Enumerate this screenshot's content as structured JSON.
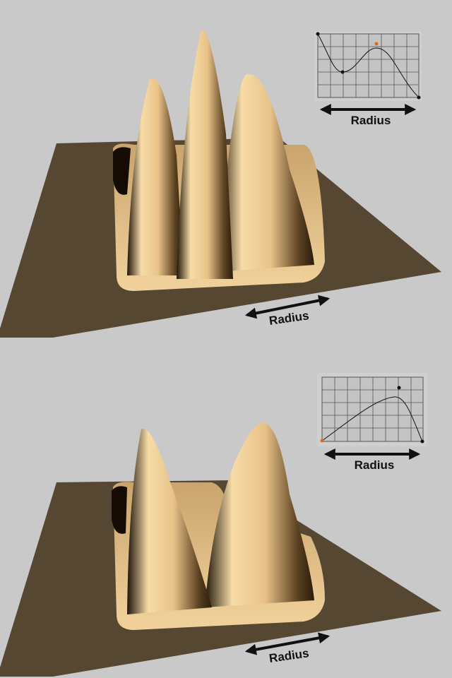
{
  "panels": [
    {
      "graph_label": "Radius",
      "plane_label": "Radius"
    },
    {
      "graph_label": "Radius",
      "plane_label": "Radius"
    }
  ]
}
